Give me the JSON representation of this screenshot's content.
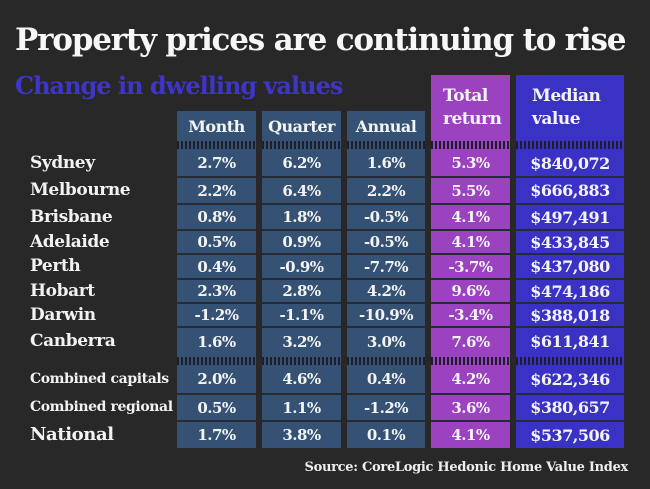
{
  "title": "Property prices are continuing to rise",
  "subtitle": "Change in dwelling values",
  "columns": [
    {
      "label": "Month"
    },
    {
      "label": "Quarter"
    },
    {
      "label": "Annual"
    },
    {
      "label": "Total return"
    },
    {
      "label": "Median value"
    }
  ],
  "colors": {
    "background": "#282828",
    "subtitle": "#3f35c8",
    "change_columns": "#355275",
    "total_return": "#9a42c0",
    "median_value": "#3a32c4"
  },
  "rows": [
    {
      "region": "Sydney",
      "month": "2.7%",
      "quarter": "6.2%",
      "annual": "1.6%",
      "total_return": "5.3%",
      "median": "$840,072"
    },
    {
      "region": "Melbourne",
      "month": "2.2%",
      "quarter": "6.4%",
      "annual": "2.2%",
      "total_return": "5.5%",
      "median": "$666,883"
    },
    {
      "region": "Brisbane",
      "month": "0.8%",
      "quarter": "1.8%",
      "annual": "-0.5%",
      "total_return": "4.1%",
      "median": "$497,491"
    },
    {
      "region": "Adelaide",
      "month": "0.5%",
      "quarter": "0.9%",
      "annual": "-0.5%",
      "total_return": "4.1%",
      "median": "$433,845"
    },
    {
      "region": "Perth",
      "month": "0.4%",
      "quarter": "-0.9%",
      "annual": "-7.7%",
      "total_return": "-3.7%",
      "median": "$437,080"
    },
    {
      "region": "Hobart",
      "month": "2.3%",
      "quarter": "2.8%",
      "annual": "4.2%",
      "total_return": "9.6%",
      "median": "$474,186"
    },
    {
      "region": "Darwin",
      "month": "-1.2%",
      "quarter": "-1.1%",
      "annual": "-10.9%",
      "total_return": "-3.4%",
      "median": "$388,018"
    },
    {
      "region": "Canberra",
      "month": "1.6%",
      "quarter": "3.2%",
      "annual": "3.0%",
      "total_return": "7.6%",
      "median": "$611,841"
    },
    {
      "region": "Combined capitals",
      "month": "2.0%",
      "quarter": "4.6%",
      "annual": "0.4%",
      "total_return": "4.2%",
      "median": "$622,346"
    },
    {
      "region": "Combined regional",
      "month": "0.5%",
      "quarter": "1.1%",
      "annual": "-1.2%",
      "total_return": "3.6%",
      "median": "$380,657"
    },
    {
      "region": "National",
      "month": "1.7%",
      "quarter": "3.8%",
      "annual": "0.1%",
      "total_return": "4.1%",
      "median": "$537,506"
    }
  ],
  "source": "Source: CoreLogic Hedonic Home Value Index"
}
